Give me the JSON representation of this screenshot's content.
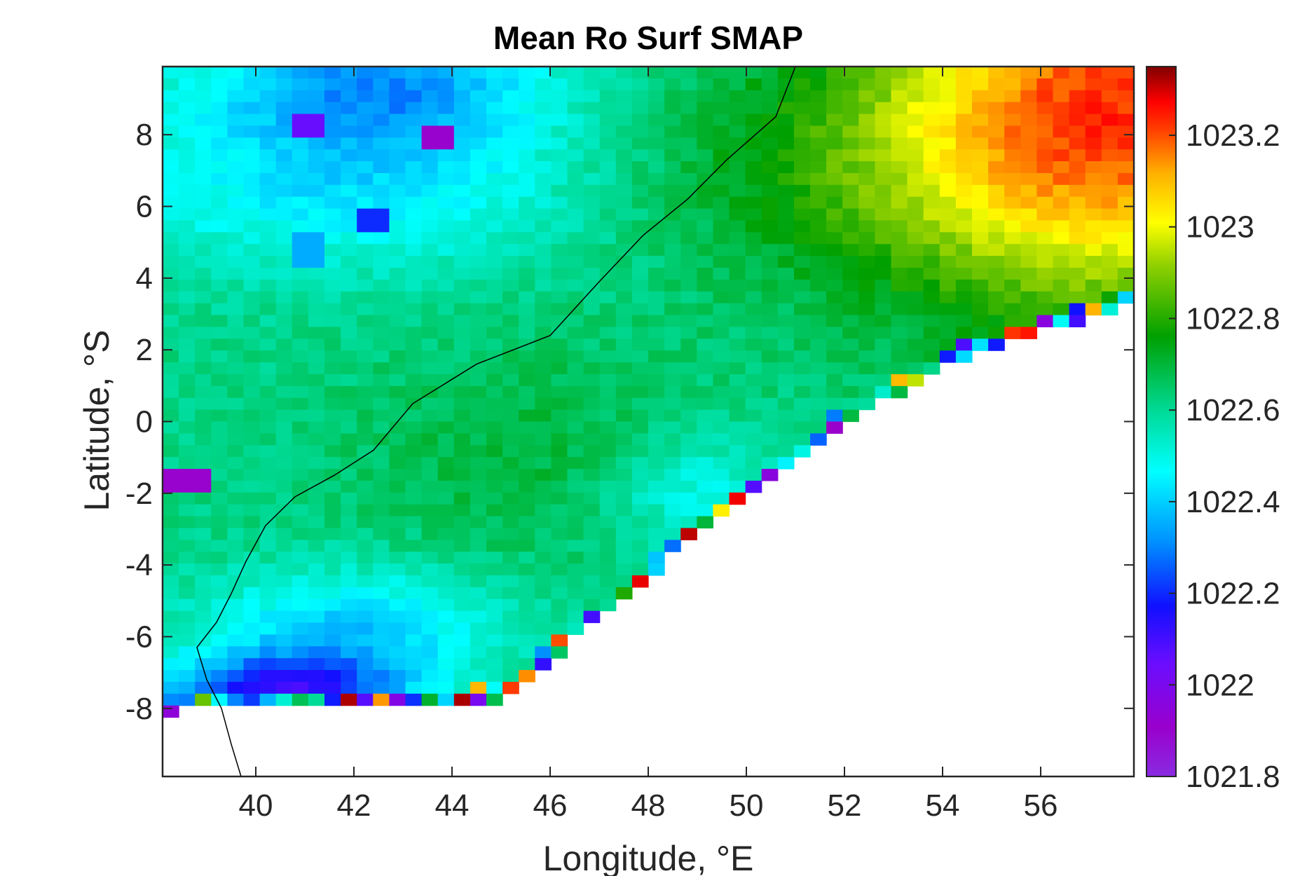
{
  "chart_data": {
    "type": "heatmap",
    "title": "Mean Ro Surf SMAP",
    "xlabel": "Longitude, °E",
    "ylabel": "Latitude, °S",
    "xlim": [
      38.1,
      57.9
    ],
    "ylim": [
      -9.9,
      9.9
    ],
    "xticks": [
      40,
      42,
      44,
      46,
      48,
      50,
      52,
      54,
      56
    ],
    "yticks": [
      8,
      6,
      4,
      2,
      0,
      -2,
      -4,
      -6,
      -8
    ],
    "x_tick_labels": [
      "40",
      "42",
      "44",
      "46",
      "48",
      "50",
      "52",
      "54",
      "56"
    ],
    "y_tick_labels": [
      "8",
      "6",
      "4",
      "2",
      "0",
      "-2",
      "-4",
      "-6",
      "-8"
    ],
    "colorbar": {
      "colormap": "jet-like (purple-blue-cyan-green-yellow-red-darkred)",
      "clim": [
        1021.8,
        1023.35
      ],
      "ticks": [
        1021.8,
        1022,
        1022.2,
        1022.4,
        1022.6,
        1022.8,
        1023,
        1023.2
      ],
      "tick_labels": [
        "1021.8",
        "1022",
        "1022.2",
        "1022.4",
        "1022.6",
        "1022.8",
        "1023",
        "1023.2"
      ]
    },
    "grid": false,
    "coastline": [
      [
        51.0,
        9.9
      ],
      [
        50.6,
        8.5
      ],
      [
        49.6,
        7.3
      ],
      [
        48.8,
        6.2
      ],
      [
        47.9,
        5.2
      ],
      [
        47.0,
        3.9
      ],
      [
        46.0,
        2.4
      ],
      [
        44.5,
        1.6
      ],
      [
        43.2,
        0.5
      ],
      [
        42.4,
        -0.8
      ],
      [
        41.6,
        -1.5
      ],
      [
        40.8,
        -2.1
      ],
      [
        40.2,
        -2.9
      ],
      [
        39.8,
        -3.9
      ],
      [
        39.5,
        -4.8
      ],
      [
        39.2,
        -5.6
      ],
      [
        38.8,
        -6.3
      ],
      [
        39.0,
        -7.2
      ],
      [
        39.3,
        -8.0
      ],
      [
        39.5,
        -9.0
      ],
      [
        39.7,
        -9.9
      ]
    ],
    "domain_boundary_southeast": [
      [
        38.1,
        -8.1
      ],
      [
        45.0,
        -7.8
      ],
      [
        49.0,
        -3.2
      ],
      [
        52.0,
        0.0
      ],
      [
        54.5,
        1.8
      ],
      [
        57.9,
        3.3
      ]
    ],
    "anomalies": [
      {
        "lon": 41.0,
        "lat": 8.3,
        "value": 1022.05
      },
      {
        "lon": 43.6,
        "lat": 7.8,
        "value": 1021.9
      },
      {
        "lon": 42.4,
        "lat": 5.6,
        "value": 1022.2
      },
      {
        "lon": 41.2,
        "lat": 4.8,
        "value": 1022.35
      },
      {
        "lon": 38.6,
        "lat": -1.6,
        "value": 1021.9
      }
    ]
  }
}
